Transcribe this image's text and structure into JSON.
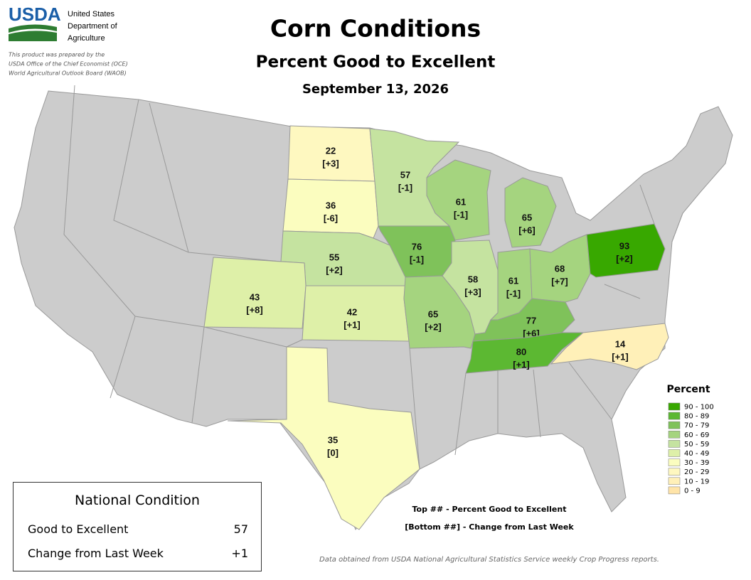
{
  "header": {
    "logo": "USDA",
    "agency": [
      "United States",
      "Department of",
      "Agriculture"
    ],
    "disclaimer": [
      "This product was prepared by the",
      "USDA Office of the Chief Economist (OCE)",
      "World Agricultural Outlook Board (WAOB)"
    ],
    "title": "Corn Conditions",
    "subtitle": "Percent Good to Excellent",
    "date": "September 13, 2026"
  },
  "states": [
    {
      "top": "22",
      "bottom": "[+3]",
      "color": "#fef8c0"
    },
    {
      "top": "36",
      "bottom": "[-6]",
      "color": "#fbfdbf"
    },
    {
      "top": "57",
      "bottom": "[-1]",
      "color": "#c5e3a0"
    },
    {
      "top": "61",
      "bottom": "[-1]",
      "color": "#a5d47f"
    },
    {
      "top": "65",
      "bottom": "[+6]",
      "color": "#a5d47f"
    },
    {
      "top": "76",
      "bottom": "[-1]",
      "color": "#7fc25a"
    },
    {
      "top": "55",
      "bottom": "[+2]",
      "color": "#c5e3a0"
    },
    {
      "top": "43",
      "bottom": "[+8]",
      "color": "#def0a8"
    },
    {
      "top": "42",
      "bottom": "[+1]",
      "color": "#def0a8"
    },
    {
      "top": "65",
      "bottom": "[+2]",
      "color": "#a5d47f"
    },
    {
      "top": "58",
      "bottom": "[+3]",
      "color": "#c5e3a0"
    },
    {
      "top": "61",
      "bottom": "[-1]",
      "color": "#a5d47f"
    },
    {
      "top": "68",
      "bottom": "[+7]",
      "color": "#a5d47f"
    },
    {
      "top": "77",
      "bottom": "[+6]",
      "color": "#7fc25a"
    },
    {
      "top": "80",
      "bottom": "[+1]",
      "color": "#5cb832"
    },
    {
      "top": "93",
      "bottom": "[+2]",
      "color": "#38a800"
    },
    {
      "top": "14",
      "bottom": "[+1]",
      "color": "#fff0b8"
    },
    {
      "top": "35",
      "bottom": "[0]",
      "color": "#fbfdbf"
    }
  ],
  "legend": {
    "title": "Percent",
    "items": [
      {
        "label": "90 - 100",
        "color": "#38a800"
      },
      {
        "label": "80 - 89",
        "color": "#5cb832"
      },
      {
        "label": "70 - 79",
        "color": "#7fc25a"
      },
      {
        "label": "60 - 69",
        "color": "#a5d47f"
      },
      {
        "label": "50 - 59",
        "color": "#c5e3a0"
      },
      {
        "label": "40 - 49",
        "color": "#def0a8"
      },
      {
        "label": "30 - 39",
        "color": "#fbfdbf"
      },
      {
        "label": "20 - 29",
        "color": "#fef8c0"
      },
      {
        "label": "10 - 19",
        "color": "#fff0b8"
      },
      {
        "label": "0 - 9",
        "color": "#ffe4a8"
      }
    ]
  },
  "national": {
    "title": "National Condition",
    "rows": [
      [
        "Good to Excellent",
        "57"
      ],
      [
        "Change from Last Week",
        "+1"
      ]
    ]
  },
  "key": [
    "Top ## - Percent Good to Excellent",
    "[Bottom ##] - Change from Last Week"
  ],
  "source": "Data obtained from USDA National Agricultural Statistics Service weekly Crop Progress reports."
}
